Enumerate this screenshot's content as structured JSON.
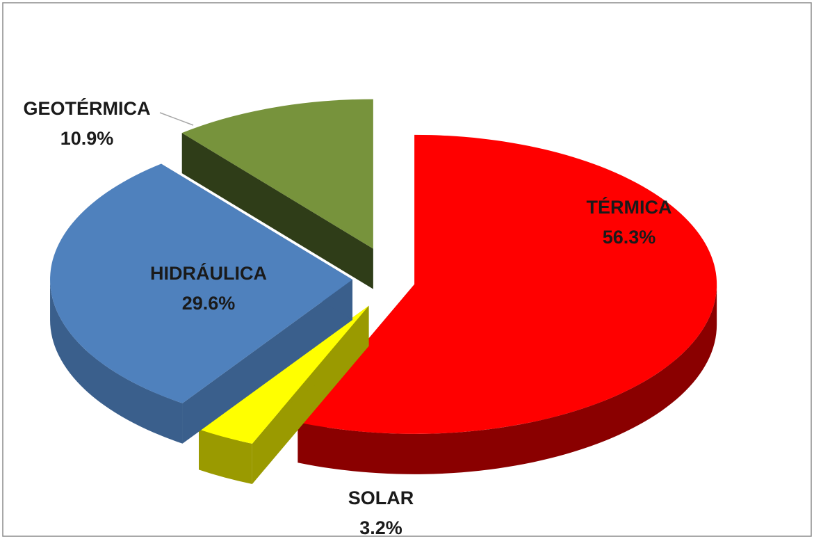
{
  "chart_data": {
    "type": "pie3d",
    "categories": [
      "TÉRMICA",
      "SOLAR",
      "HIDRÁULICA",
      "GEOTÉRMICA"
    ],
    "values": [
      56.3,
      3.2,
      29.6,
      10.9
    ],
    "value_labels": [
      "56.3%",
      "3.2%",
      "29.6%",
      "10.9%"
    ],
    "colors": [
      "#ff0000",
      "#ffff00",
      "#4f81bd",
      "#77933c"
    ],
    "side_colors": [
      "#8a0000",
      "#9a9a00",
      "#3a5f8c",
      "#2f3d18"
    ]
  }
}
